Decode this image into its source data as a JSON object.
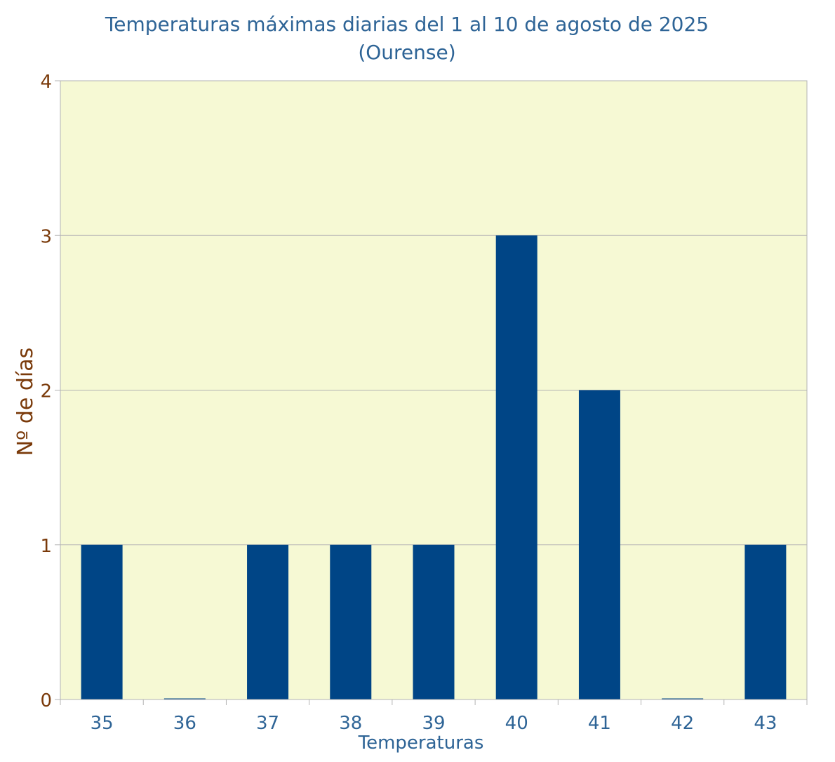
{
  "chart_data": {
    "type": "bar",
    "title_line1": "Temperaturas máximas diarias del 1 al 10 de agosto de 2025",
    "title_line2": "(Ourense)",
    "xlabel": "Temperaturas",
    "ylabel": "Nº de días",
    "categories": [
      "35",
      "36",
      "37",
      "38",
      "39",
      "40",
      "41",
      "42",
      "43"
    ],
    "values": [
      1,
      0,
      1,
      1,
      1,
      3,
      2,
      0,
      1
    ],
    "ylim": [
      0,
      4
    ],
    "yticks": [
      "0",
      "1",
      "2",
      "3",
      "4"
    ],
    "grid": true,
    "legend": "none",
    "colors": {
      "bar": "#004586",
      "plot_background": "#f6f9d4",
      "title": "#2e6496",
      "y_text": "#7a3a0a",
      "x_text": "#2e6496",
      "grid": "#b3b3b3"
    }
  }
}
